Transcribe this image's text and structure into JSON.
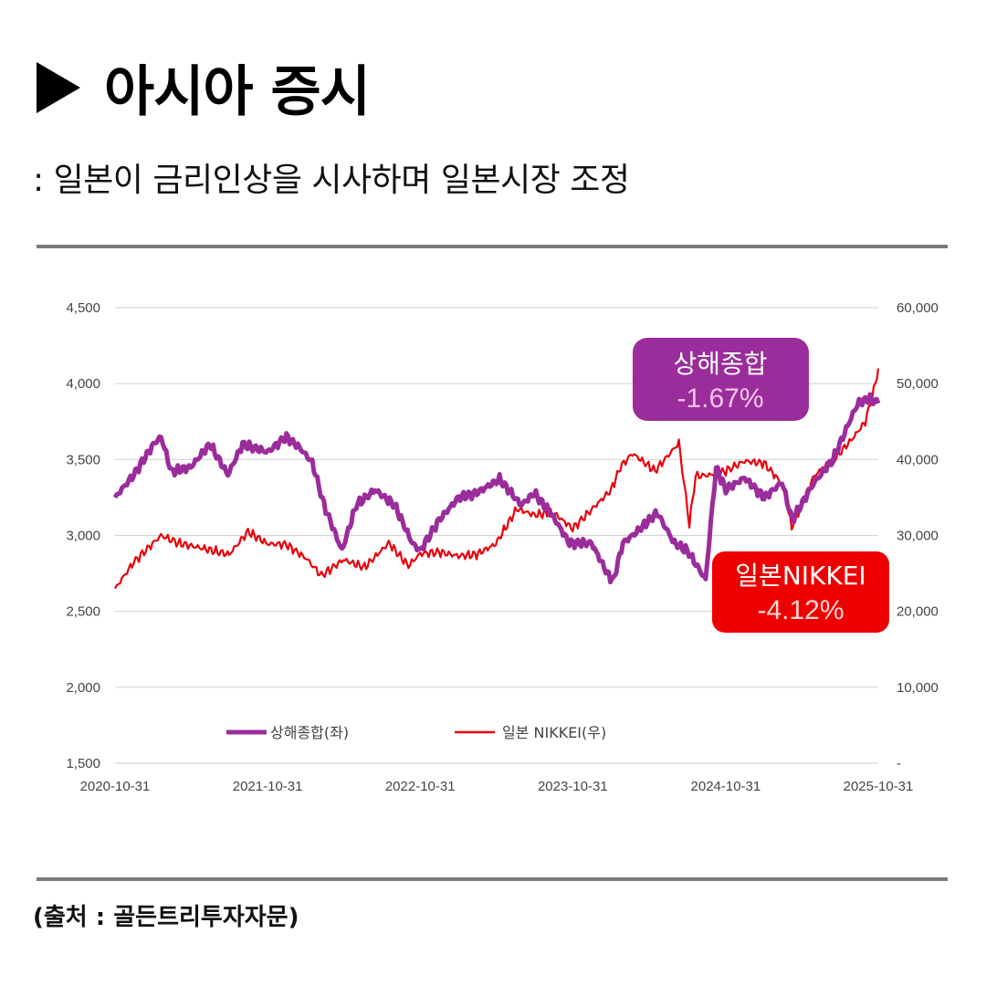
{
  "header": {
    "title": "아시아 증시",
    "subtitle": ": 일본이 금리인상을 시사하며 일본시장 조정"
  },
  "source": "(출처 : 골든트리투자자문)",
  "colors": {
    "shanghai": "#9b2c9b",
    "nikkei": "#e8000b",
    "grid": "#d6d6d6",
    "rule": "#7a7a7a"
  },
  "callouts": {
    "shanghai": {
      "name": "상해종합",
      "value": "-1.67%",
      "bg": "#9b2c9b",
      "value_color": "#f4c7e8"
    },
    "nikkei": {
      "name": "일본NIKKEI",
      "value": "-4.12%",
      "bg": "#ee0000",
      "value_color": "#ffd6d6"
    }
  },
  "chart_data": {
    "type": "line",
    "x_ticks": [
      "2020-10-31",
      "2021-10-31",
      "2022-10-31",
      "2023-10-31",
      "2024-10-31",
      "2025-10-31"
    ],
    "y_left": {
      "ticks": [
        "4,500",
        "4,000",
        "3,500",
        "3,000",
        "2,500",
        "2,000",
        "1,500"
      ],
      "ylim": [
        1500,
        4500
      ]
    },
    "y_right": {
      "ticks": [
        "60,000",
        "50,000",
        "40,000",
        "30,000",
        "20,000",
        "10,000",
        "-"
      ],
      "ylim": [
        0,
        60000
      ]
    },
    "grid": true,
    "legend_position": "bottom-center",
    "series": [
      {
        "name": "상해종합(좌)",
        "axis": "left",
        "x": [
          "2020-10-31",
          "2020-12-15",
          "2021-01-31",
          "2021-02-18",
          "2021-03-15",
          "2021-04-30",
          "2021-06-15",
          "2021-07-28",
          "2021-09-01",
          "2021-10-31",
          "2021-12-15",
          "2022-01-15",
          "2022-02-15",
          "2022-03-15",
          "2022-04-27",
          "2022-05-31",
          "2022-07-15",
          "2022-08-31",
          "2022-10-12",
          "2022-10-31",
          "2022-12-15",
          "2023-01-31",
          "2023-03-15",
          "2023-05-09",
          "2023-06-30",
          "2023-07-31",
          "2023-09-15",
          "2023-10-23",
          "2023-12-15",
          "2024-01-22",
          "2024-02-05",
          "2024-02-28",
          "2024-03-31",
          "2024-05-20",
          "2024-06-30",
          "2024-07-31",
          "2024-09-13",
          "2024-10-08",
          "2024-10-31",
          "2024-12-15",
          "2025-01-31",
          "2025-03-15",
          "2025-04-08",
          "2025-05-31",
          "2025-07-15",
          "2025-08-31",
          "2025-09-15",
          "2025-10-15",
          "2025-10-31"
        ],
        "values": [
          3250,
          3400,
          3600,
          3650,
          3420,
          3450,
          3600,
          3400,
          3600,
          3550,
          3650,
          3580,
          3480,
          3200,
          2900,
          3200,
          3300,
          3200,
          2950,
          2900,
          3100,
          3250,
          3280,
          3370,
          3200,
          3280,
          3120,
          2950,
          2950,
          2750,
          2700,
          2950,
          3020,
          3150,
          2950,
          2900,
          2710,
          3450,
          3300,
          3380,
          3250,
          3350,
          3100,
          3350,
          3500,
          3800,
          3880,
          3900,
          3870
        ]
      },
      {
        "name": "일본 NIKKEI(우)",
        "axis": "right",
        "x": [
          "2020-10-31",
          "2020-12-15",
          "2021-02-18",
          "2021-03-31",
          "2021-05-13",
          "2021-07-31",
          "2021-09-14",
          "2021-10-31",
          "2021-12-15",
          "2022-01-31",
          "2022-03-09",
          "2022-04-30",
          "2022-06-20",
          "2022-08-17",
          "2022-10-03",
          "2022-10-31",
          "2022-12-15",
          "2023-01-31",
          "2023-03-15",
          "2023-04-30",
          "2023-06-19",
          "2023-07-31",
          "2023-09-15",
          "2023-10-31",
          "2023-12-15",
          "2024-01-31",
          "2024-02-22",
          "2024-03-22",
          "2024-05-15",
          "2024-07-11",
          "2024-08-05",
          "2024-08-20",
          "2024-09-30",
          "2024-10-31",
          "2024-12-15",
          "2025-01-31",
          "2025-03-15",
          "2025-04-07",
          "2025-05-31",
          "2025-07-15",
          "2025-08-31",
          "2025-09-30",
          "2025-10-20",
          "2025-10-31"
        ],
        "values": [
          23000,
          26500,
          30000,
          29000,
          28500,
          27500,
          30500,
          28900,
          28800,
          27000,
          24700,
          26800,
          25800,
          29000,
          26000,
          27600,
          27800,
          27300,
          27500,
          28900,
          33500,
          32700,
          33000,
          30900,
          33400,
          36000,
          39000,
          40800,
          38500,
          42200,
          31500,
          37800,
          38000,
          38500,
          39800,
          39500,
          36800,
          31100,
          37900,
          39900,
          42800,
          45000,
          49000,
          52000
        ]
      }
    ]
  }
}
